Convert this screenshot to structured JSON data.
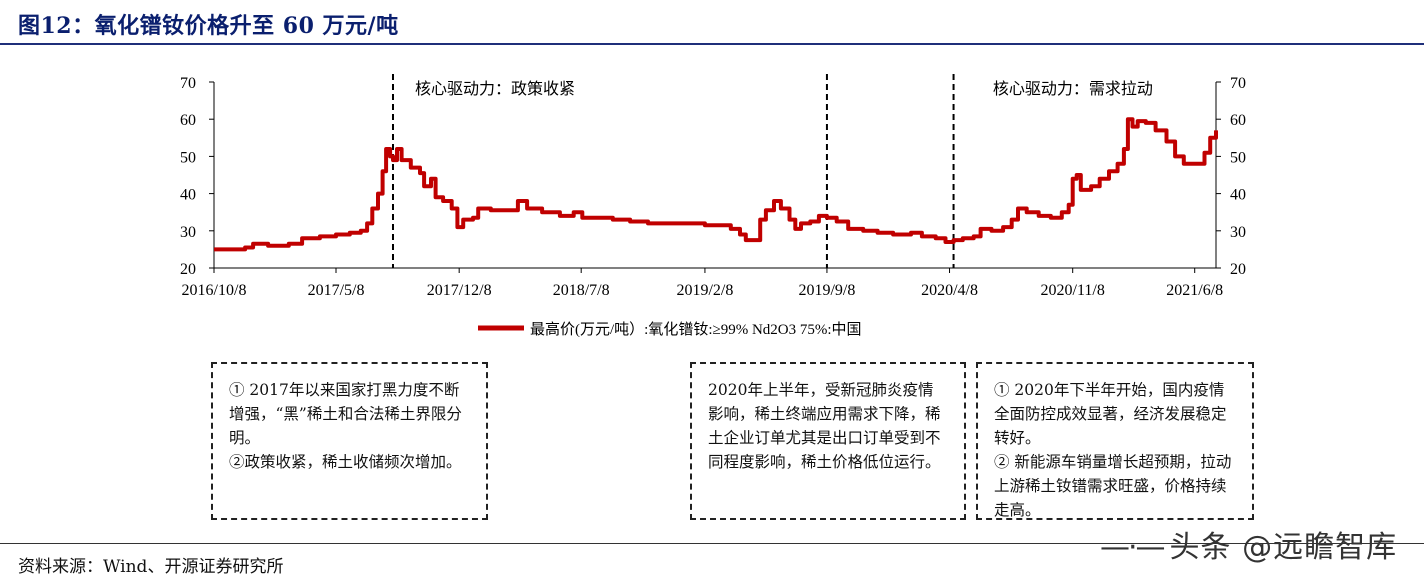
{
  "figure": {
    "title": "图12：氧化镨钕价格升至 60 万元/吨",
    "source": "资料来源：Wind、开源证券研究所",
    "watermark": "头条 @远瞻智库"
  },
  "notes": [
    "① 2017年以来国家打黑力度不断增强，“黑”稀土和合法稀土界限分明。\n②政策收紧，稀土收储频次增加。",
    "2020年上半年，受新冠肺炎疫情影响，稀土终端应用需求下降，稀土企业订单尤其是出口订单受到不同程度影响，稀土价格低位运行。",
    "① 2020年下半年开始，国内疫情全面防控成效显著，经济发展稳定转好。\n② 新能源车销量增长超预期，拉动上游稀土钕镨需求旺盛，价格持续走高。"
  ],
  "chart_data": {
    "type": "line",
    "title": "",
    "xlabel": "",
    "ylabel": "",
    "ylim": [
      20,
      70
    ],
    "yticks": [
      20,
      30,
      40,
      50,
      60,
      70
    ],
    "xlim": [
      "2016-10-08",
      "2021-07-15"
    ],
    "xticks": [
      "2016/10/8",
      "2017/5/8",
      "2017/12/8",
      "2018/7/8",
      "2019/2/8",
      "2019/9/8",
      "2020/4/8",
      "2020/11/8",
      "2021/6/8"
    ],
    "xtick_dates": [
      "2016-10-08",
      "2017-05-08",
      "2017-12-08",
      "2018-07-08",
      "2019-02-08",
      "2019-09-08",
      "2020-04-08",
      "2020-11-08",
      "2021-06-08"
    ],
    "legend_position": "bottom",
    "grid": false,
    "line_color": "#c00000",
    "annotations": [
      {
        "text": "核心驱动力：政策收紧",
        "date": "2017-08-15"
      },
      {
        "text": "核心驱动力：需求拉动",
        "date": "2020-05-15"
      }
    ],
    "vlines": [
      "2017-08-15",
      "2019-09-08",
      "2020-04-15"
    ],
    "series": [
      {
        "name": "最高价(万元/吨）:氧化镨钕:≥99% Nd2O3 75%:中国",
        "points": [
          [
            "2016-10-08",
            25.0
          ],
          [
            "2016-11-15",
            25.0
          ],
          [
            "2016-12-01",
            25.5
          ],
          [
            "2016-12-15",
            26.5
          ],
          [
            "2017-01-10",
            26.0
          ],
          [
            "2017-02-15",
            26.5
          ],
          [
            "2017-03-10",
            28.0
          ],
          [
            "2017-04-10",
            28.5
          ],
          [
            "2017-05-08",
            29.0
          ],
          [
            "2017-06-01",
            29.5
          ],
          [
            "2017-06-20",
            30.0
          ],
          [
            "2017-07-01",
            32.0
          ],
          [
            "2017-07-10",
            36.0
          ],
          [
            "2017-07-20",
            40.0
          ],
          [
            "2017-07-28",
            46.0
          ],
          [
            "2017-08-03",
            52.0
          ],
          [
            "2017-08-10",
            50.0
          ],
          [
            "2017-08-15",
            49.0
          ],
          [
            "2017-08-22",
            52.0
          ],
          [
            "2017-08-30",
            49.0
          ],
          [
            "2017-09-15",
            47.0
          ],
          [
            "2017-10-01",
            45.5
          ],
          [
            "2017-10-08",
            42.0
          ],
          [
            "2017-10-20",
            44.0
          ],
          [
            "2017-10-28",
            39.0
          ],
          [
            "2017-11-10",
            38.0
          ],
          [
            "2017-11-25",
            36.0
          ],
          [
            "2017-12-05",
            31.0
          ],
          [
            "2017-12-15",
            33.0
          ],
          [
            "2018-01-01",
            33.5
          ],
          [
            "2018-01-10",
            36.0
          ],
          [
            "2018-02-01",
            35.5
          ],
          [
            "2018-03-01",
            35.5
          ],
          [
            "2018-03-20",
            38.0
          ],
          [
            "2018-04-05",
            36.0
          ],
          [
            "2018-05-01",
            35.0
          ],
          [
            "2018-06-01",
            34.0
          ],
          [
            "2018-06-25",
            35.0
          ],
          [
            "2018-07-10",
            33.5
          ],
          [
            "2018-08-01",
            33.5
          ],
          [
            "2018-09-01",
            33.0
          ],
          [
            "2018-10-01",
            32.5
          ],
          [
            "2018-11-01",
            32.0
          ],
          [
            "2018-12-01",
            32.0
          ],
          [
            "2019-01-01",
            32.0
          ],
          [
            "2019-02-08",
            31.5
          ],
          [
            "2019-03-01",
            31.5
          ],
          [
            "2019-03-25",
            30.5
          ],
          [
            "2019-04-10",
            29.0
          ],
          [
            "2019-04-20",
            27.5
          ],
          [
            "2019-05-10",
            27.5
          ],
          [
            "2019-05-15",
            33.0
          ],
          [
            "2019-05-25",
            35.5
          ],
          [
            "2019-06-08",
            38.0
          ],
          [
            "2019-06-20",
            36.0
          ],
          [
            "2019-07-05",
            33.0
          ],
          [
            "2019-07-15",
            30.5
          ],
          [
            "2019-07-25",
            32.0
          ],
          [
            "2019-08-10",
            32.5
          ],
          [
            "2019-08-25",
            34.0
          ],
          [
            "2019-09-08",
            33.5
          ],
          [
            "2019-09-25",
            32.5
          ],
          [
            "2019-10-15",
            30.5
          ],
          [
            "2019-11-10",
            30.0
          ],
          [
            "2019-12-05",
            29.5
          ],
          [
            "2020-01-01",
            29.0
          ],
          [
            "2020-02-01",
            29.5
          ],
          [
            "2020-02-20",
            28.5
          ],
          [
            "2020-03-15",
            28.0
          ],
          [
            "2020-04-01",
            27.0
          ],
          [
            "2020-04-15",
            27.5
          ],
          [
            "2020-05-01",
            28.0
          ],
          [
            "2020-05-20",
            28.5
          ],
          [
            "2020-06-01",
            30.5
          ],
          [
            "2020-06-20",
            30.0
          ],
          [
            "2020-07-10",
            31.0
          ],
          [
            "2020-07-25",
            33.0
          ],
          [
            "2020-08-05",
            36.0
          ],
          [
            "2020-08-20",
            35.0
          ],
          [
            "2020-09-10",
            34.0
          ],
          [
            "2020-10-01",
            33.5
          ],
          [
            "2020-10-20",
            35.0
          ],
          [
            "2020-11-01",
            37.0
          ],
          [
            "2020-11-08",
            44.0
          ],
          [
            "2020-11-15",
            45.0
          ],
          [
            "2020-11-22",
            41.0
          ],
          [
            "2020-12-10",
            42.0
          ],
          [
            "2020-12-25",
            44.0
          ],
          [
            "2021-01-10",
            46.0
          ],
          [
            "2021-01-25",
            48.0
          ],
          [
            "2021-02-05",
            52.0
          ],
          [
            "2021-02-12",
            60.0
          ],
          [
            "2021-02-20",
            58.0
          ],
          [
            "2021-03-01",
            59.5
          ],
          [
            "2021-03-15",
            59.0
          ],
          [
            "2021-04-01",
            57.0
          ],
          [
            "2021-04-20",
            54.0
          ],
          [
            "2021-05-05",
            50.0
          ],
          [
            "2021-05-20",
            48.0
          ],
          [
            "2021-06-10",
            48.0
          ],
          [
            "2021-06-25",
            51.0
          ],
          [
            "2021-07-05",
            55.0
          ],
          [
            "2021-07-15",
            57.0
          ]
        ]
      }
    ]
  }
}
